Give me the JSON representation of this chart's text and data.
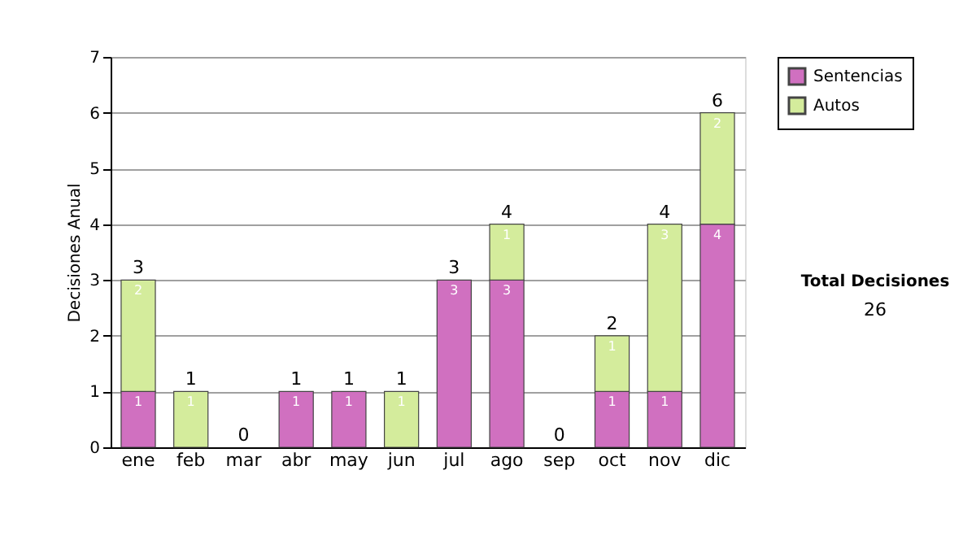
{
  "chart_data": {
    "type": "bar",
    "stacked": true,
    "ylabel": "Decisiones Anual",
    "categories": [
      "ene",
      "feb",
      "mar",
      "abr",
      "may",
      "jun",
      "jul",
      "ago",
      "sep",
      "oct",
      "nov",
      "dic"
    ],
    "series": [
      {
        "name": "Sentencias",
        "color": "#d070c0",
        "values": [
          1,
          0,
          0,
          1,
          1,
          0,
          3,
          3,
          0,
          1,
          1,
          4
        ],
        "value_labels": [
          "1",
          null,
          null,
          "1",
          "1",
          null,
          "3",
          "3",
          null,
          "1",
          "1",
          "4"
        ]
      },
      {
        "name": "Autos",
        "color": "#d4ec9c",
        "values": [
          2,
          1,
          0,
          0,
          0,
          1,
          0,
          1,
          0,
          1,
          3,
          2
        ],
        "value_labels": [
          "2",
          "1",
          null,
          null,
          null,
          "1",
          null,
          "1",
          null,
          "1",
          "3",
          "2"
        ]
      }
    ],
    "totals": [
      "3",
      "1",
      "0",
      "1",
      "1",
      "1",
      "3",
      "4",
      "0",
      "2",
      "4",
      "6"
    ],
    "ylim": [
      0,
      7
    ],
    "yticks": [
      0,
      1,
      2,
      3,
      4,
      5,
      6,
      7
    ],
    "grid": "y",
    "legend": "right",
    "annotations": [
      "Total Decisiones",
      "26"
    ]
  }
}
